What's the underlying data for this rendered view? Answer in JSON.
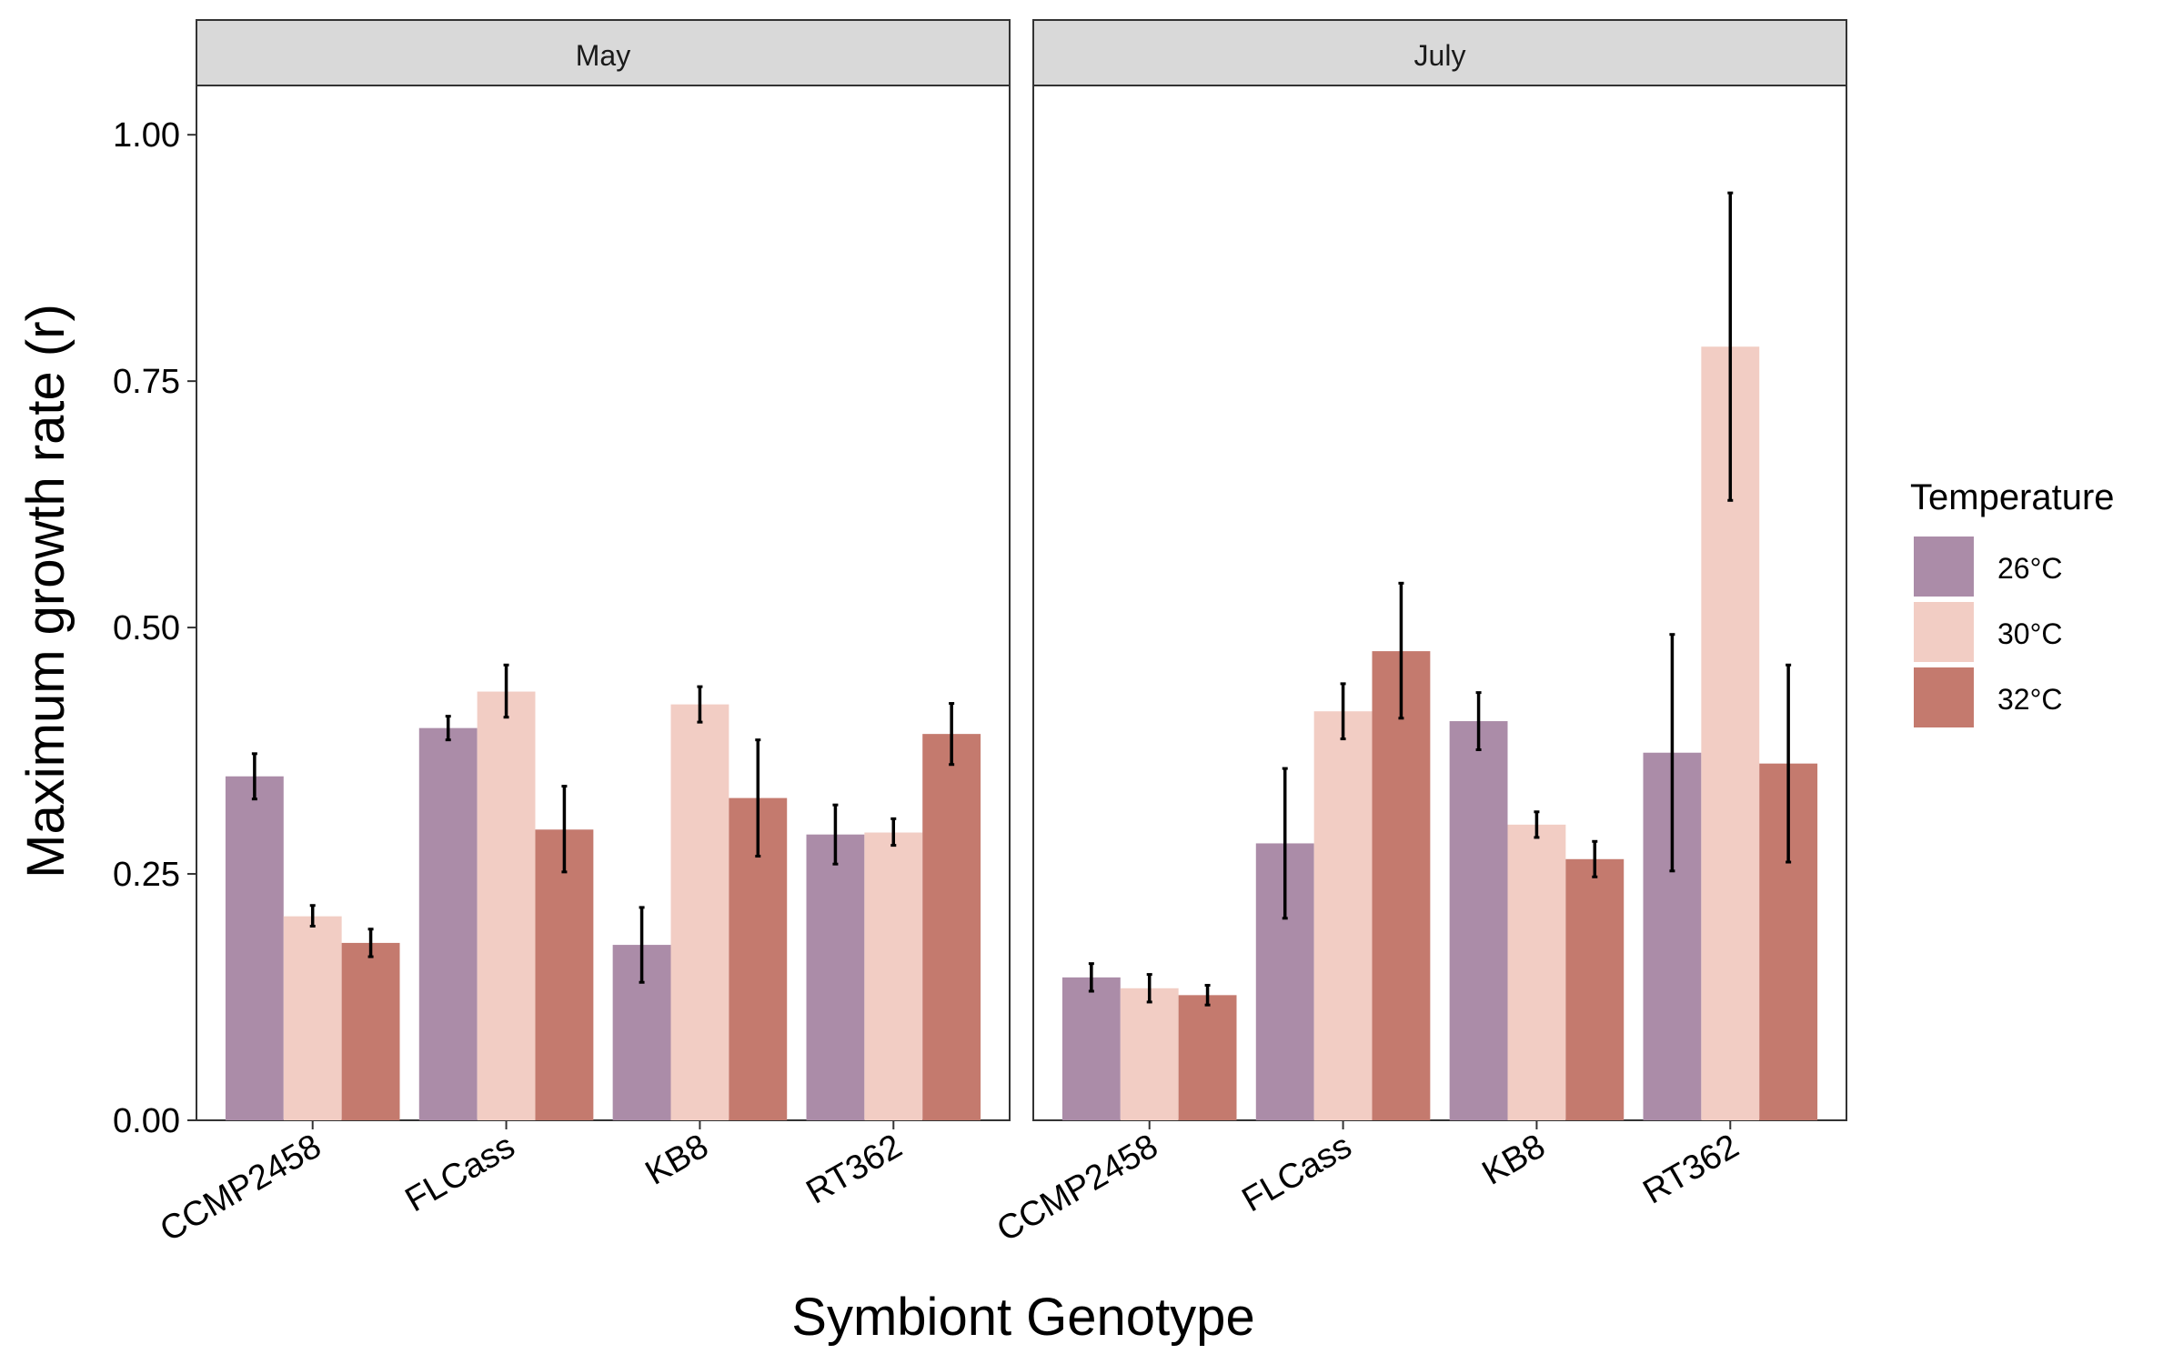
{
  "chart_data": {
    "type": "bar",
    "ylabel": "Maximum growth rate (r)",
    "xlabel": "Symbiont Genotype",
    "ylim": [
      0,
      1.05
    ],
    "yticks": [
      "0.00",
      "0.25",
      "0.50",
      "0.75",
      "1.00"
    ],
    "ytick_values": [
      0,
      0.25,
      0.5,
      0.75,
      1.0
    ],
    "categories": [
      "CCMP2458",
      "FLCass",
      "KB8",
      "RT362"
    ],
    "grid": false,
    "legend": {
      "title": "Temperature",
      "placement": "right",
      "entries": [
        "26°C",
        "30°C",
        "32°C"
      ]
    },
    "colors": {
      "26°C": "#ab8ca8",
      "30°C": "#f2cdc4",
      "32°C": "#c47a6e"
    },
    "panels": [
      {
        "title": "May",
        "series": [
          {
            "name": "26°C",
            "values": [
              0.349,
              0.398,
              0.178,
              0.29
            ],
            "err_low": [
              0.326,
              0.386,
              0.14,
              0.26
            ],
            "err_high": [
              0.372,
              0.41,
              0.216,
              0.32
            ]
          },
          {
            "name": "30°C",
            "values": [
              0.207,
              0.435,
              0.422,
              0.292
            ],
            "err_low": [
              0.197,
              0.409,
              0.404,
              0.279
            ],
            "err_high": [
              0.218,
              0.462,
              0.44,
              0.306
            ]
          },
          {
            "name": "32°C",
            "values": [
              0.18,
              0.295,
              0.327,
              0.392
            ],
            "err_low": [
              0.166,
              0.252,
              0.268,
              0.361
            ],
            "err_high": [
              0.194,
              0.339,
              0.386,
              0.423
            ]
          }
        ]
      },
      {
        "title": "July",
        "series": [
          {
            "name": "26°C",
            "values": [
              0.145,
              0.281,
              0.405,
              0.373
            ],
            "err_low": [
              0.131,
              0.205,
              0.376,
              0.253
            ],
            "err_high": [
              0.159,
              0.357,
              0.434,
              0.493
            ]
          },
          {
            "name": "30°C",
            "values": [
              0.134,
              0.415,
              0.3,
              0.785
            ],
            "err_low": [
              0.12,
              0.387,
              0.287,
              0.629
            ],
            "err_high": [
              0.148,
              0.443,
              0.313,
              0.941
            ]
          },
          {
            "name": "32°C",
            "values": [
              0.127,
              0.476,
              0.265,
              0.362
            ],
            "err_low": [
              0.117,
              0.408,
              0.247,
              0.262
            ],
            "err_high": [
              0.137,
              0.545,
              0.283,
              0.462
            ]
          }
        ]
      }
    ]
  }
}
